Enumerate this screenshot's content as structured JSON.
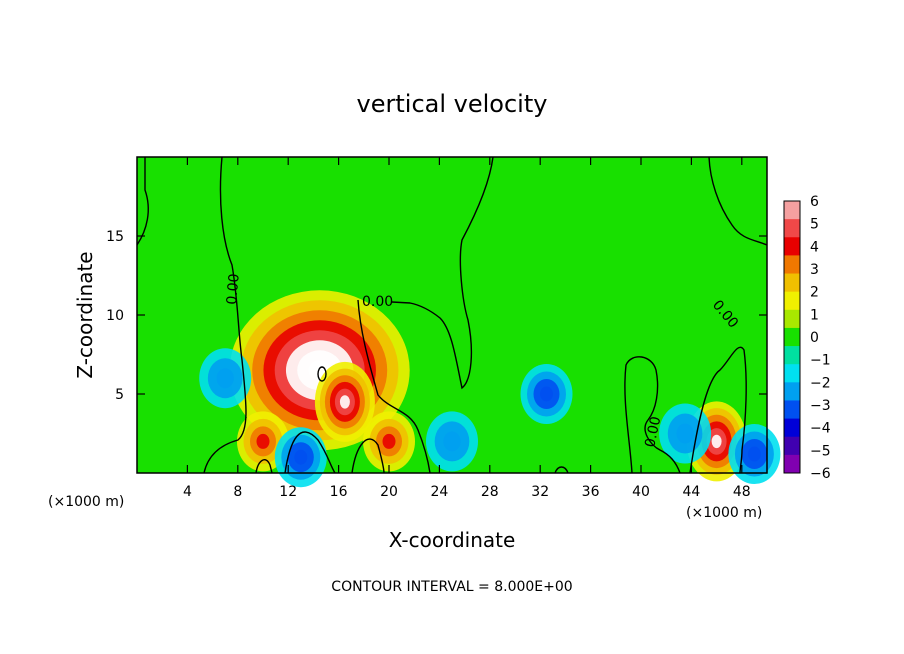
{
  "chart_data": {
    "type": "heatmap",
    "title": "vertical velocity",
    "xlabel": "X-coordinate",
    "ylabel": "Z-coordinate",
    "x_unit_label_left": "(×1000 m)",
    "x_unit_label_right": "(×1000 m)",
    "xlim": [
      0,
      50
    ],
    "ylim": [
      0,
      20
    ],
    "x_ticks": [
      "4",
      "8",
      "12",
      "16",
      "20",
      "24",
      "28",
      "32",
      "36",
      "40",
      "44",
      "48"
    ],
    "x_tick_values": [
      4,
      8,
      12,
      16,
      20,
      24,
      28,
      32,
      36,
      40,
      44,
      48
    ],
    "y_ticks": [
      "5",
      "10",
      "15"
    ],
    "y_tick_values": [
      5,
      10,
      15
    ],
    "contour_labels": [
      "0.00",
      "0.00",
      "0.00",
      "0.00"
    ],
    "footer": "CONTOUR INTERVAL = 8.000E+00",
    "colorbar": {
      "levels": [
        "6",
        "5",
        "4",
        "3",
        "2",
        "1",
        "0",
        "−1",
        "−2",
        "−3",
        "−4",
        "−5",
        "−6"
      ],
      "colors": [
        "#f5a0a0",
        "#f04848",
        "#e80000",
        "#f07800",
        "#f0c000",
        "#f0f000",
        "#a8e800",
        "#18e000",
        "#00e0a0",
        "#00e0f0",
        "#00a0f0",
        "#0050f0",
        "#0000d8",
        "#4000b0",
        "#8000b0"
      ]
    },
    "features": [
      {
        "x": 14.5,
        "z": 6.5,
        "w": 8,
        "kind": "updraft-max"
      },
      {
        "x": 16.5,
        "z": 4.5,
        "w": 6,
        "kind": "updraft"
      },
      {
        "x": 20,
        "z": 2,
        "w": 4,
        "kind": "updraft"
      },
      {
        "x": 46,
        "z": 2,
        "w": 6,
        "kind": "updraft"
      },
      {
        "x": 10,
        "z": 2,
        "w": 4,
        "kind": "updraft"
      },
      {
        "x": 32.5,
        "z": 5,
        "w": -3.5,
        "kind": "downdraft"
      },
      {
        "x": 49,
        "z": 1.2,
        "w": -3.5,
        "kind": "downdraft"
      },
      {
        "x": 13,
        "z": 1,
        "w": -3.5,
        "kind": "downdraft"
      },
      {
        "x": 7,
        "z": 6,
        "w": -2.5,
        "kind": "downdraft"
      },
      {
        "x": 43.5,
        "z": 2.5,
        "w": -2.5,
        "kind": "downdraft"
      },
      {
        "x": 25,
        "z": 2,
        "w": -2.5,
        "kind": "downdraft"
      }
    ]
  }
}
